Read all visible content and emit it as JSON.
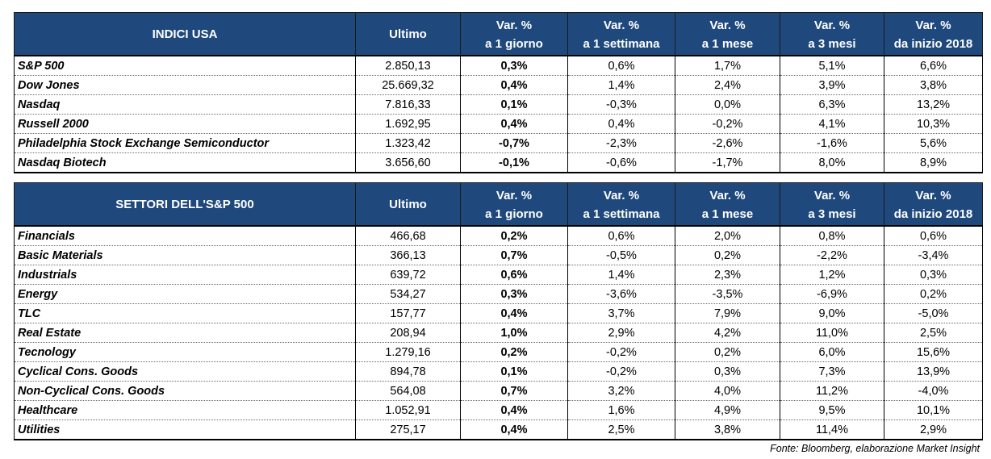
{
  "header_columns": [
    {
      "line1": "Ultimo",
      "line2": ""
    },
    {
      "line1": "Var. %",
      "line2": "a 1 giorno"
    },
    {
      "line1": "Var. %",
      "line2": "a 1 settimana"
    },
    {
      "line1": "Var. %",
      "line2": "a 1 mese"
    },
    {
      "line1": "Var. %",
      "line2": "a 3 mesi"
    },
    {
      "line1": "Var. %",
      "line2": "da inizio 2018"
    }
  ],
  "tables": [
    {
      "title": "INDICI USA",
      "rows": [
        [
          "S&P 500",
          "2.850,13",
          "0,3%",
          "0,6%",
          "1,7%",
          "5,1%",
          "6,6%"
        ],
        [
          "Dow Jones",
          "25.669,32",
          "0,4%",
          "1,4%",
          "2,4%",
          "3,9%",
          "3,8%"
        ],
        [
          "Nasdaq",
          "7.816,33",
          "0,1%",
          "-0,3%",
          "0,0%",
          "6,3%",
          "13,2%"
        ],
        [
          "Russell 2000",
          "1.692,95",
          "0,4%",
          "0,4%",
          "-0,2%",
          "4,1%",
          "10,3%"
        ],
        [
          "Philadelphia Stock Exchange Semiconductor",
          "1.323,42",
          "-0,7%",
          "-2,3%",
          "-2,6%",
          "-1,6%",
          "5,6%"
        ],
        [
          "Nasdaq Biotech",
          "3.656,60",
          "-0,1%",
          "-0,6%",
          "-1,7%",
          "8,0%",
          "8,9%"
        ]
      ]
    },
    {
      "title": "SETTORI DELL'S&P 500",
      "rows": [
        [
          "Financials",
          "466,68",
          "0,2%",
          "0,6%",
          "2,0%",
          "0,8%",
          "0,6%"
        ],
        [
          "Basic Materials",
          "366,13",
          "0,7%",
          "-0,5%",
          "0,2%",
          "-2,2%",
          "-3,4%"
        ],
        [
          "Industrials",
          "639,72",
          "0,6%",
          "1,4%",
          "2,3%",
          "1,2%",
          "0,3%"
        ],
        [
          "Energy",
          "534,27",
          "0,3%",
          "-3,6%",
          "-3,5%",
          "-6,9%",
          "0,2%"
        ],
        [
          "TLC",
          "157,77",
          "0,4%",
          "3,7%",
          "7,9%",
          "9,0%",
          "-5,0%"
        ],
        [
          "Real Estate",
          "208,94",
          "1,0%",
          "2,9%",
          "4,2%",
          "11,0%",
          "2,5%"
        ],
        [
          "Tecnology",
          "1.279,16",
          "0,2%",
          "-0,2%",
          "0,2%",
          "6,0%",
          "15,6%"
        ],
        [
          "Cyclical Cons. Goods",
          "894,78",
          "0,1%",
          "-0,2%",
          "0,3%",
          "7,3%",
          "13,9%"
        ],
        [
          "Non-Cyclical Cons. Goods",
          "564,08",
          "0,7%",
          "3,2%",
          "4,0%",
          "11,2%",
          "-4,0%"
        ],
        [
          "Healthcare",
          "1.052,91",
          "0,4%",
          "1,6%",
          "4,9%",
          "9,5%",
          "10,1%"
        ],
        [
          "Utilities",
          "275,17",
          "0,4%",
          "2,5%",
          "3,8%",
          "11,4%",
          "2,9%"
        ]
      ]
    }
  ],
  "source_note": "Fonte: Bloomberg, elaborazione Market Insight",
  "colors": {
    "header_bg": "#1f497d",
    "header_text": "#ffffff"
  }
}
